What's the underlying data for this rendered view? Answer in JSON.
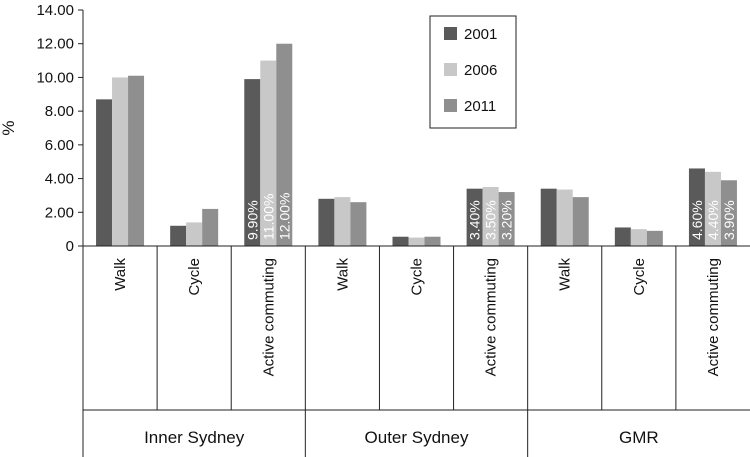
{
  "chart_data": {
    "type": "bar",
    "ylabel": "%",
    "ylim": [
      0,
      14
    ],
    "yticks": [
      "0",
      "2.00",
      "4.00",
      "6.00",
      "8.00",
      "10.00",
      "12.00",
      "14.00"
    ],
    "legend": {
      "placement": "top-center"
    },
    "groups": [
      {
        "label": "Inner Sydney",
        "categories": [
          "Walk",
          "Cycle",
          "Active commuting"
        ]
      },
      {
        "label": "Outer Sydney",
        "categories": [
          "Walk",
          "Cycle",
          "Active commuting"
        ]
      },
      {
        "label": "GMR",
        "categories": [
          "Walk",
          "Cycle",
          "Active commuting"
        ]
      }
    ],
    "series": [
      {
        "name": "2001",
        "color": "#5a5a5a",
        "values": [
          8.7,
          1.2,
          9.9,
          2.8,
          0.55,
          3.4,
          3.4,
          1.1,
          4.6
        ]
      },
      {
        "name": "2006",
        "color": "#c8c8c8",
        "values": [
          10.0,
          1.4,
          11.0,
          2.9,
          0.5,
          3.5,
          3.35,
          1.0,
          4.4
        ]
      },
      {
        "name": "2011",
        "color": "#8f8f8f",
        "values": [
          10.1,
          2.2,
          12.0,
          2.6,
          0.55,
          3.2,
          2.9,
          0.9,
          3.9
        ]
      }
    ],
    "data_labels": [
      {
        "category_index": 2,
        "labels": [
          "9.90%",
          "11.00%",
          "12.00%"
        ]
      },
      {
        "category_index": 5,
        "labels": [
          "3.40%",
          "3.50%",
          "3.20%"
        ]
      },
      {
        "category_index": 8,
        "labels": [
          "4.60%",
          "4.40%",
          "3.90%"
        ]
      }
    ]
  }
}
